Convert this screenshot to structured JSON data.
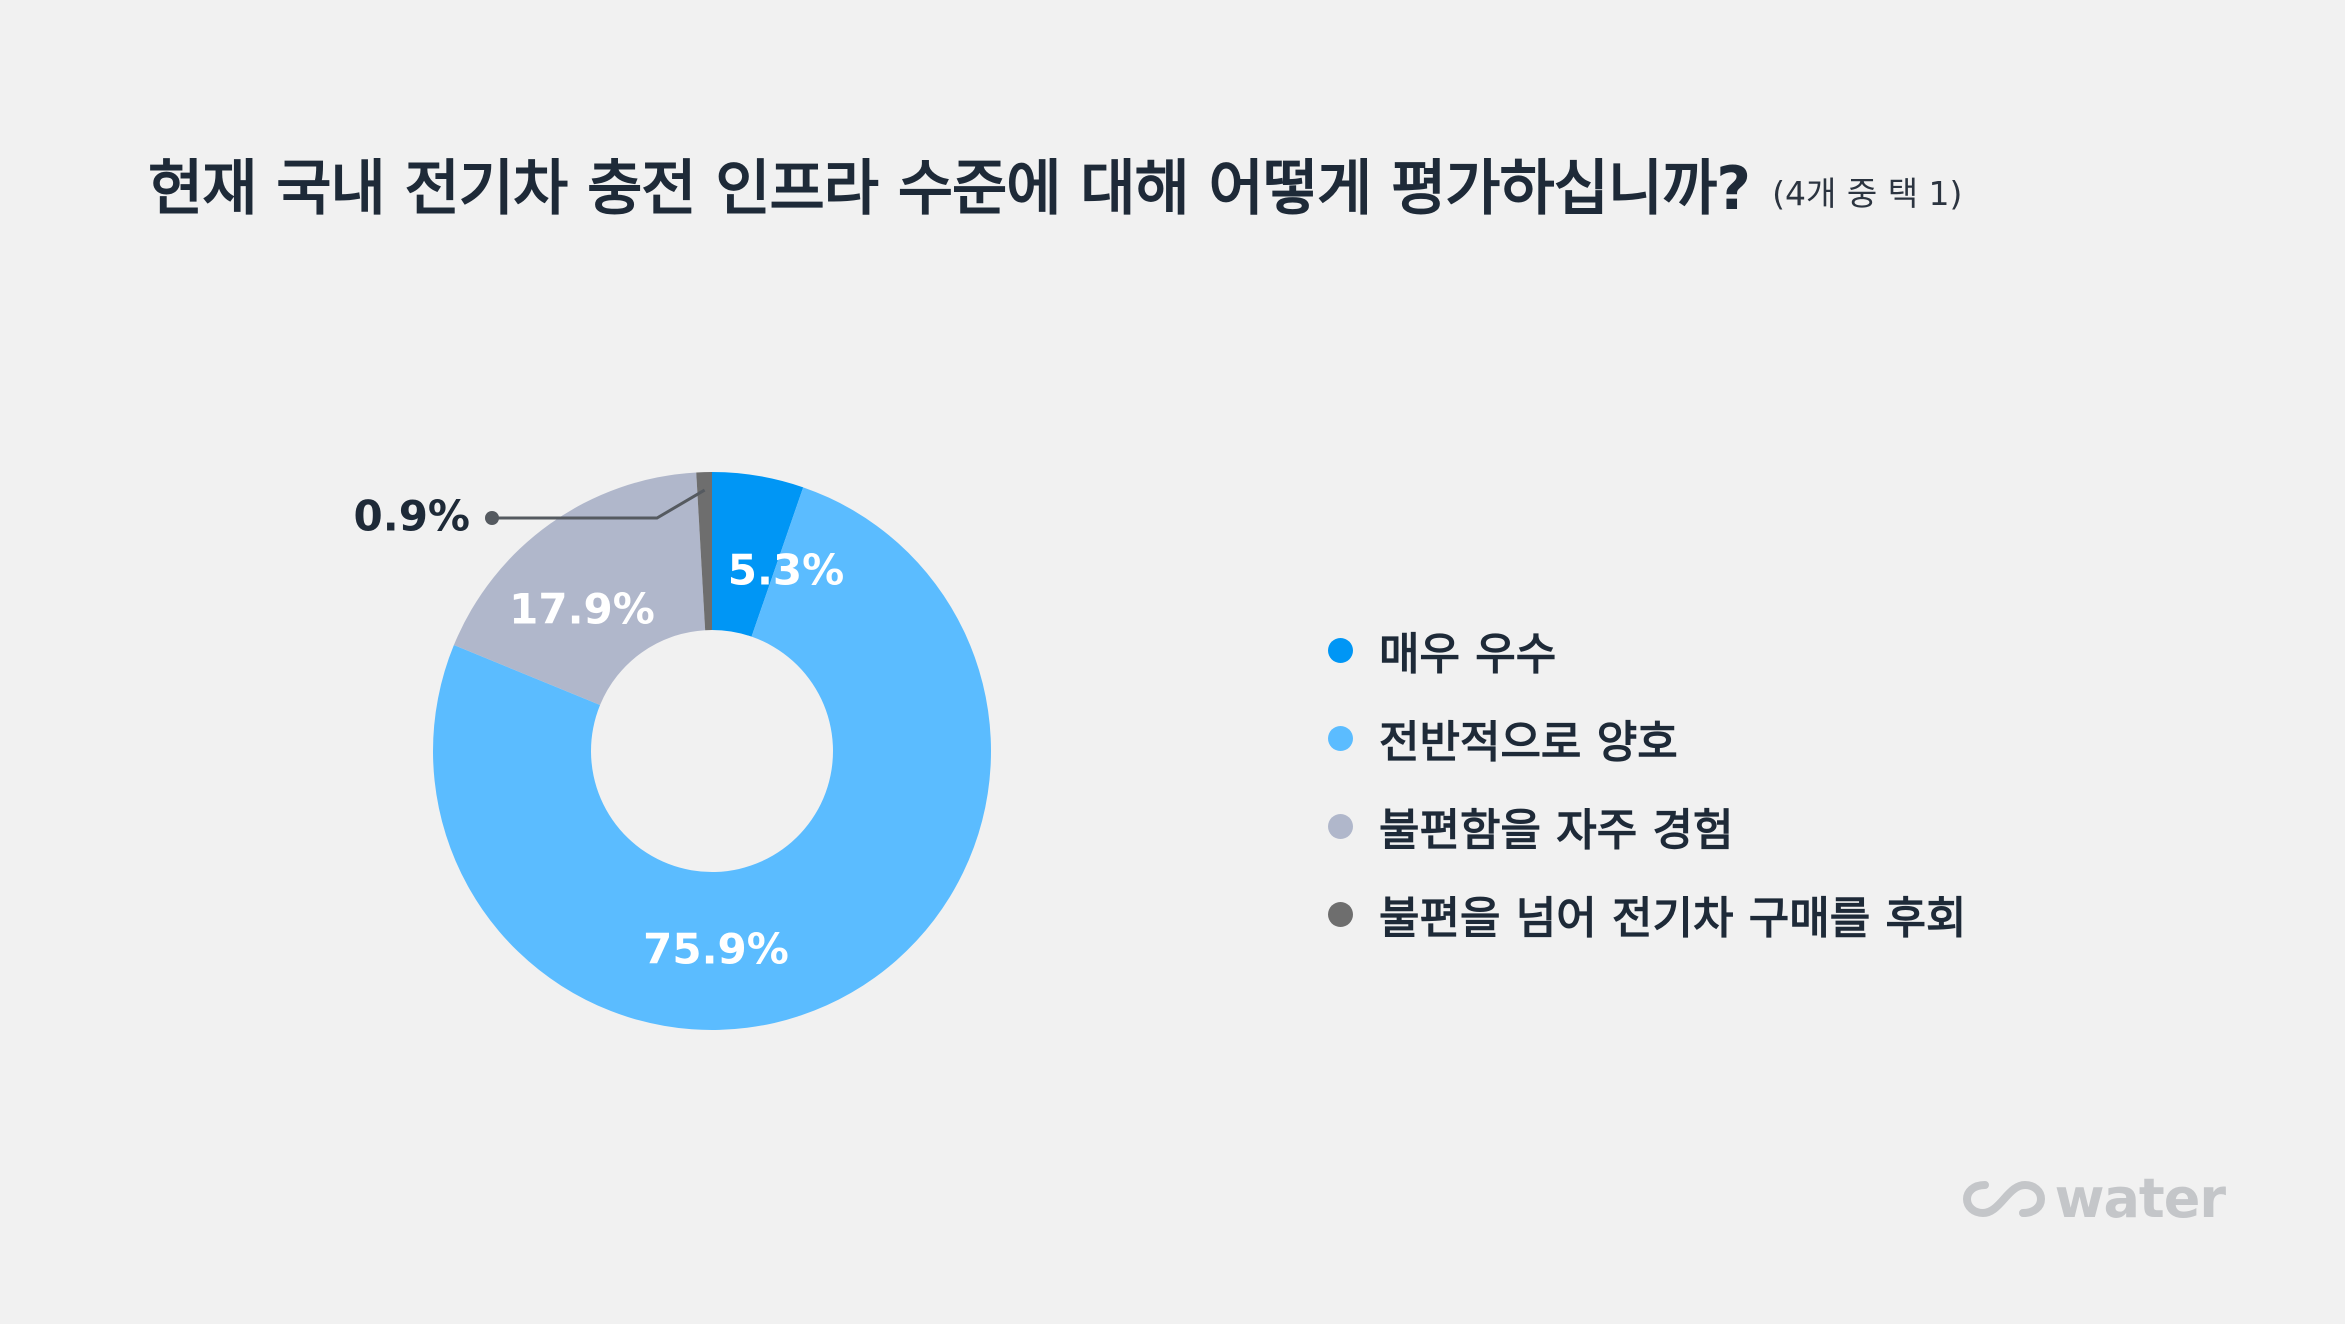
{
  "header": {
    "title": "현재 국내 전기차 충전 인프라 수준에 대해 어떻게 평가하십니까?",
    "subtitle": "(4개 중 택 1)"
  },
  "logo": {
    "text": "water",
    "icon": "infinity-loop-icon"
  },
  "chart_data": {
    "type": "pie",
    "donut": true,
    "categories": [
      "매우 우수",
      "전반적으로 양호",
      "불편함을 자주 경험",
      "불편을 넘어 전기차 구매를 후회"
    ],
    "values": [
      5.3,
      75.9,
      17.9,
      0.9
    ],
    "value_labels": [
      "5.3%",
      "75.9%",
      "17.9%",
      "0.9%"
    ],
    "colors": [
      "#0096f5",
      "#5bbcff",
      "#b0b7cb",
      "#6e6e6e"
    ],
    "label_colors": [
      "#ffffff",
      "#ffffff",
      "#ffffff",
      "#1e2a38"
    ],
    "start": "12 o'clock",
    "direction": "clockwise",
    "legend_position": "right"
  }
}
